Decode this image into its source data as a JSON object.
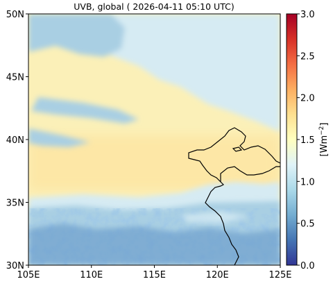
{
  "title": "UVB, global ( 2026-04-11 05:10 UTC)",
  "lat_ticks": [
    {
      "value": 50,
      "label": "50N"
    },
    {
      "value": 45,
      "label": "45N"
    },
    {
      "value": 40,
      "label": "40N"
    },
    {
      "value": 35,
      "label": "35N"
    },
    {
      "value": 30,
      "label": "30N"
    }
  ],
  "lon_ticks": [
    {
      "value": 105,
      "label": "105E"
    },
    {
      "value": 110,
      "label": "110E"
    },
    {
      "value": 115,
      "label": "115E"
    },
    {
      "value": 120,
      "label": "120E"
    },
    {
      "value": 125,
      "label": "125E"
    }
  ],
  "colorbar": {
    "label_base": "[Wm",
    "label_exp": "−2",
    "label_close": "]",
    "min": 0.0,
    "max": 3.0,
    "ticks": [
      {
        "value": 0.0,
        "label": "0.0"
      },
      {
        "value": 0.5,
        "label": "0.5"
      },
      {
        "value": 1.0,
        "label": "1.0"
      },
      {
        "value": 1.5,
        "label": "1.5"
      },
      {
        "value": 2.0,
        "label": "2.0"
      },
      {
        "value": 2.5,
        "label": "2.5"
      },
      {
        "value": 3.0,
        "label": "3.0"
      }
    ],
    "colormap": [
      "#313695",
      "#4575b4",
      "#74add1",
      "#abd9e9",
      "#e0f3f8",
      "#ffffbf",
      "#fee090",
      "#fdae61",
      "#f46d43",
      "#d73027",
      "#a50026"
    ]
  },
  "colors": {
    "clear_sky_high": "#fbf0b8",
    "clear_sky_mid": "#fde7a6",
    "cloud_light": "#d6ebf3",
    "cloud_mid": "#a9cfe3",
    "cloud_dark": "#5e93c6",
    "coastline": "#000000"
  }
}
